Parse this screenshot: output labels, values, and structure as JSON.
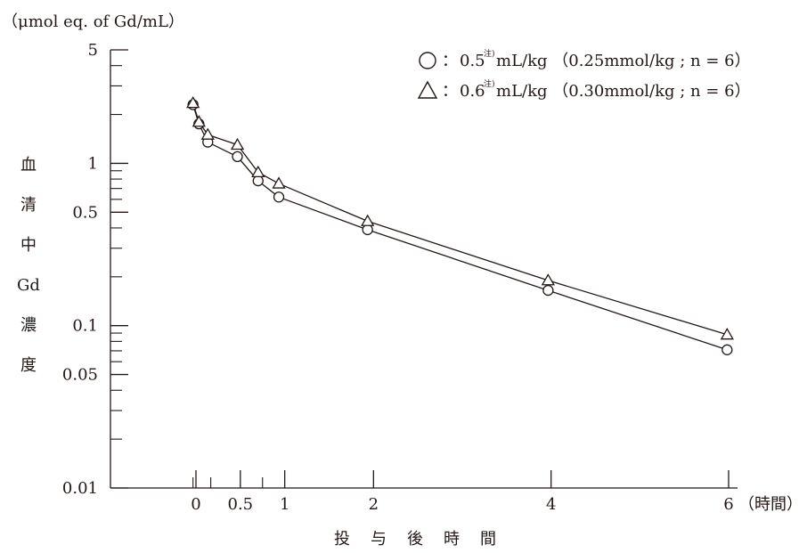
{
  "chart_data": {
    "type": "line",
    "y_unit": "（μmol eq. of Gd/mL）",
    "ylabel_chars": [
      "血",
      "清",
      "中",
      "Gd",
      "濃",
      "度"
    ],
    "xlabel_chars": [
      "投",
      "与",
      "後",
      "時",
      "間"
    ],
    "x_unit": "（時間）",
    "yscale": "log",
    "ylim": [
      0.01,
      5
    ],
    "xlim": [
      -0.25,
      6
    ],
    "y_ticks": [
      {
        "value": 5,
        "label": "5"
      },
      {
        "value": 1,
        "label": "1"
      },
      {
        "value": 0.5,
        "label": "0.5"
      },
      {
        "value": 0.1,
        "label": "0.1"
      },
      {
        "value": 0.05,
        "label": "0.05"
      },
      {
        "value": 0.01,
        "label": "0.01"
      }
    ],
    "y_minor_ticks": [
      4,
      3,
      2,
      0.9,
      0.8,
      0.7,
      0.6,
      0.4,
      0.3,
      0.2,
      0.09,
      0.08,
      0.07,
      0.06,
      0.04,
      0.03,
      0.02
    ],
    "x_ticks": [
      {
        "value": 0,
        "label": "0"
      },
      {
        "value": 0.5,
        "label": "0.5"
      },
      {
        "value": 1,
        "label": "1"
      },
      {
        "value": 2,
        "label": "2"
      },
      {
        "value": 4,
        "label": "4"
      },
      {
        "value": 6,
        "label": "6"
      }
    ],
    "x_minor_ticks": [
      -0.0333,
      0.1667,
      0.75
    ],
    "series": [
      {
        "marker": "circle",
        "legend_value": "0.5",
        "legend_note": "注)",
        "legend_unit": " mL/kg （0.25mmol/kg ; n = 6）",
        "x": [
          -0.0333,
          0.0333,
          0.1333,
          0.4667,
          0.7,
          0.9333,
          1.9333,
          3.9667,
          5.9833
        ],
        "y": [
          2.3,
          1.75,
          1.35,
          1.1,
          0.78,
          0.62,
          0.39,
          0.165,
          0.071
        ]
      },
      {
        "marker": "triangle",
        "legend_value": "0.6",
        "legend_note": "注)",
        "legend_unit": " mL/kg （0.30mmol/kg ; n = 6）",
        "x": [
          -0.0333,
          0.0333,
          0.1333,
          0.4667,
          0.7,
          0.9333,
          1.9333,
          3.9667,
          5.9833
        ],
        "y": [
          2.35,
          1.8,
          1.5,
          1.3,
          0.88,
          0.75,
          0.44,
          0.19,
          0.088
        ]
      }
    ]
  }
}
